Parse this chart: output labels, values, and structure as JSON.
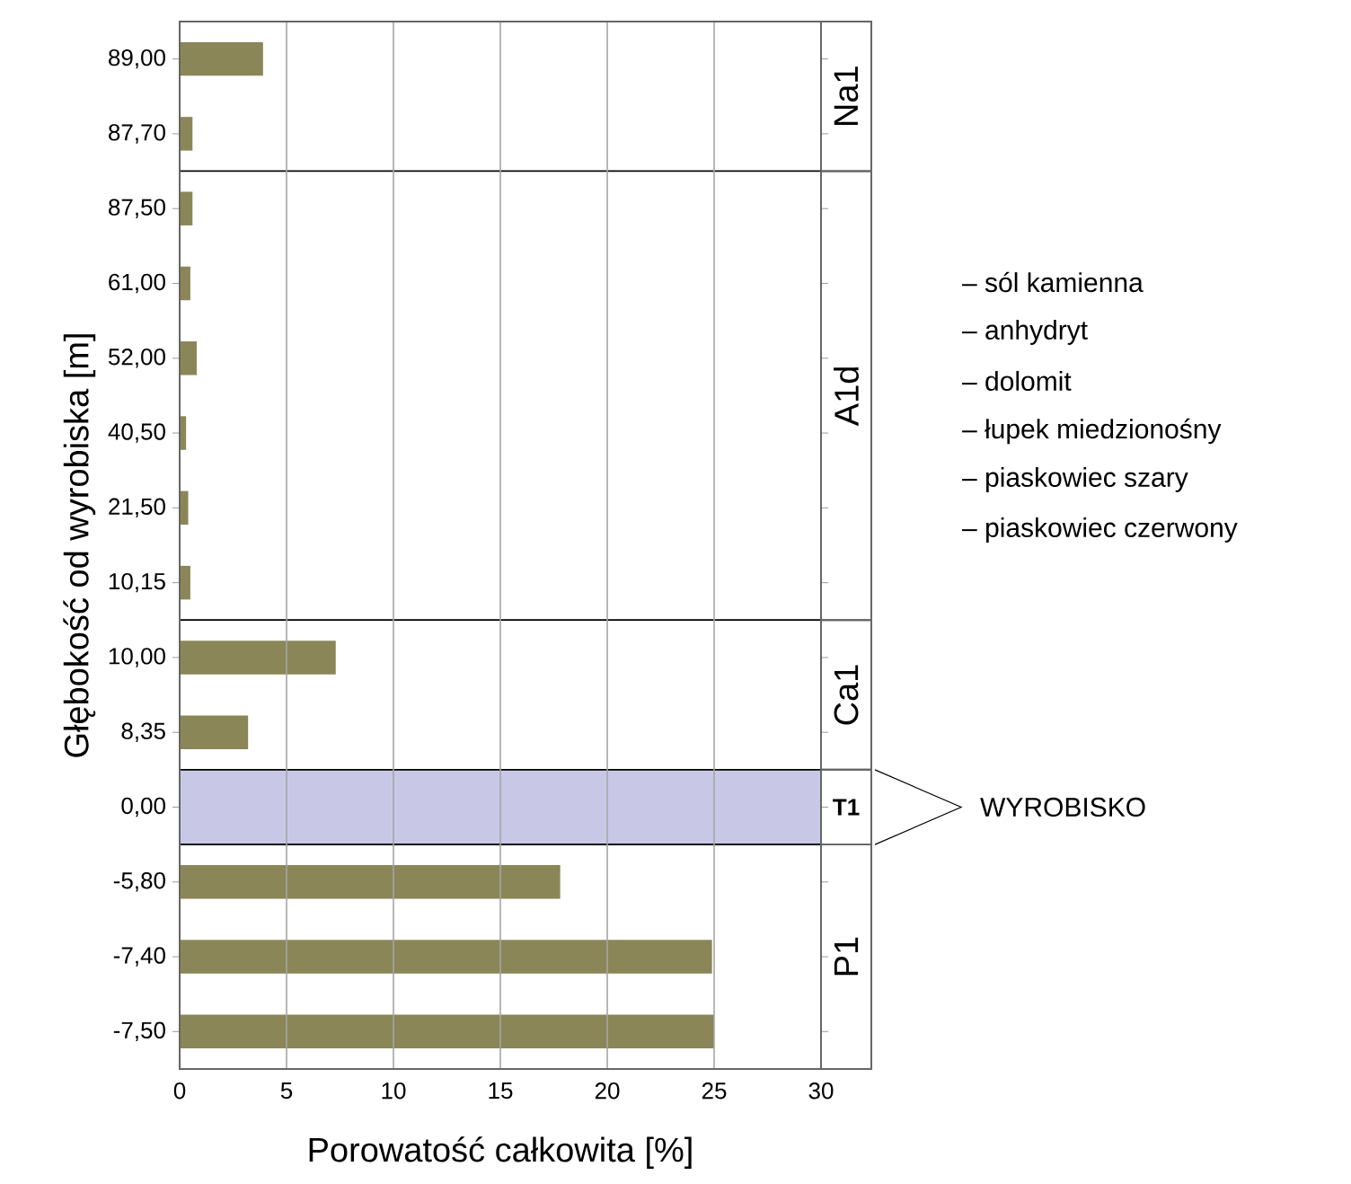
{
  "chart_data": {
    "type": "bar",
    "orientation": "horizontal",
    "xlabel": "Porowatość całkowita [%]",
    "ylabel": "Głębokość od wyrobiska [m]",
    "categories": [
      "89,00",
      "87,70",
      "87,50",
      "61,00",
      "52,00",
      "40,50",
      "21,50",
      "10,15",
      "10,00",
      "8,35",
      "0,00",
      "-5,80",
      "-7,40",
      "-7,50"
    ],
    "values": [
      3.9,
      0.6,
      0.6,
      0.5,
      0.8,
      0.3,
      0.4,
      0.5,
      7.3,
      3.2,
      null,
      17.8,
      24.9,
      25.0
    ],
    "color": "#8a8658",
    "xlim": [
      0,
      30
    ],
    "xticks": [
      0,
      5,
      10,
      15,
      20,
      25,
      30
    ],
    "grid": "x",
    "bands": [
      {
        "axis": "y",
        "from": "89,00",
        "to": "87,70",
        "label": "Na1",
        "color": "#ffffff"
      },
      {
        "axis": "y",
        "from": "87,50",
        "to": "10,15",
        "label": "A1d",
        "color": "#ffffff"
      },
      {
        "axis": "y",
        "from": "10,00",
        "to": "8,35",
        "label": "Ca1",
        "color": "#ffffff"
      },
      {
        "axis": "y",
        "from": "0,00",
        "to": "0,00",
        "label": "T1",
        "color": "#c8c8e6"
      },
      {
        "axis": "y",
        "from": "-5,80",
        "to": "-7,50",
        "label": "P1",
        "color": "#ffffff"
      }
    ],
    "annotations": [
      "– sól kamienna",
      "– anhydryt",
      "– dolomit",
      "– łupek miedzionośny",
      "– piaskowiec szary",
      "– piaskowiec czerwony",
      "WYROBISKO"
    ]
  }
}
